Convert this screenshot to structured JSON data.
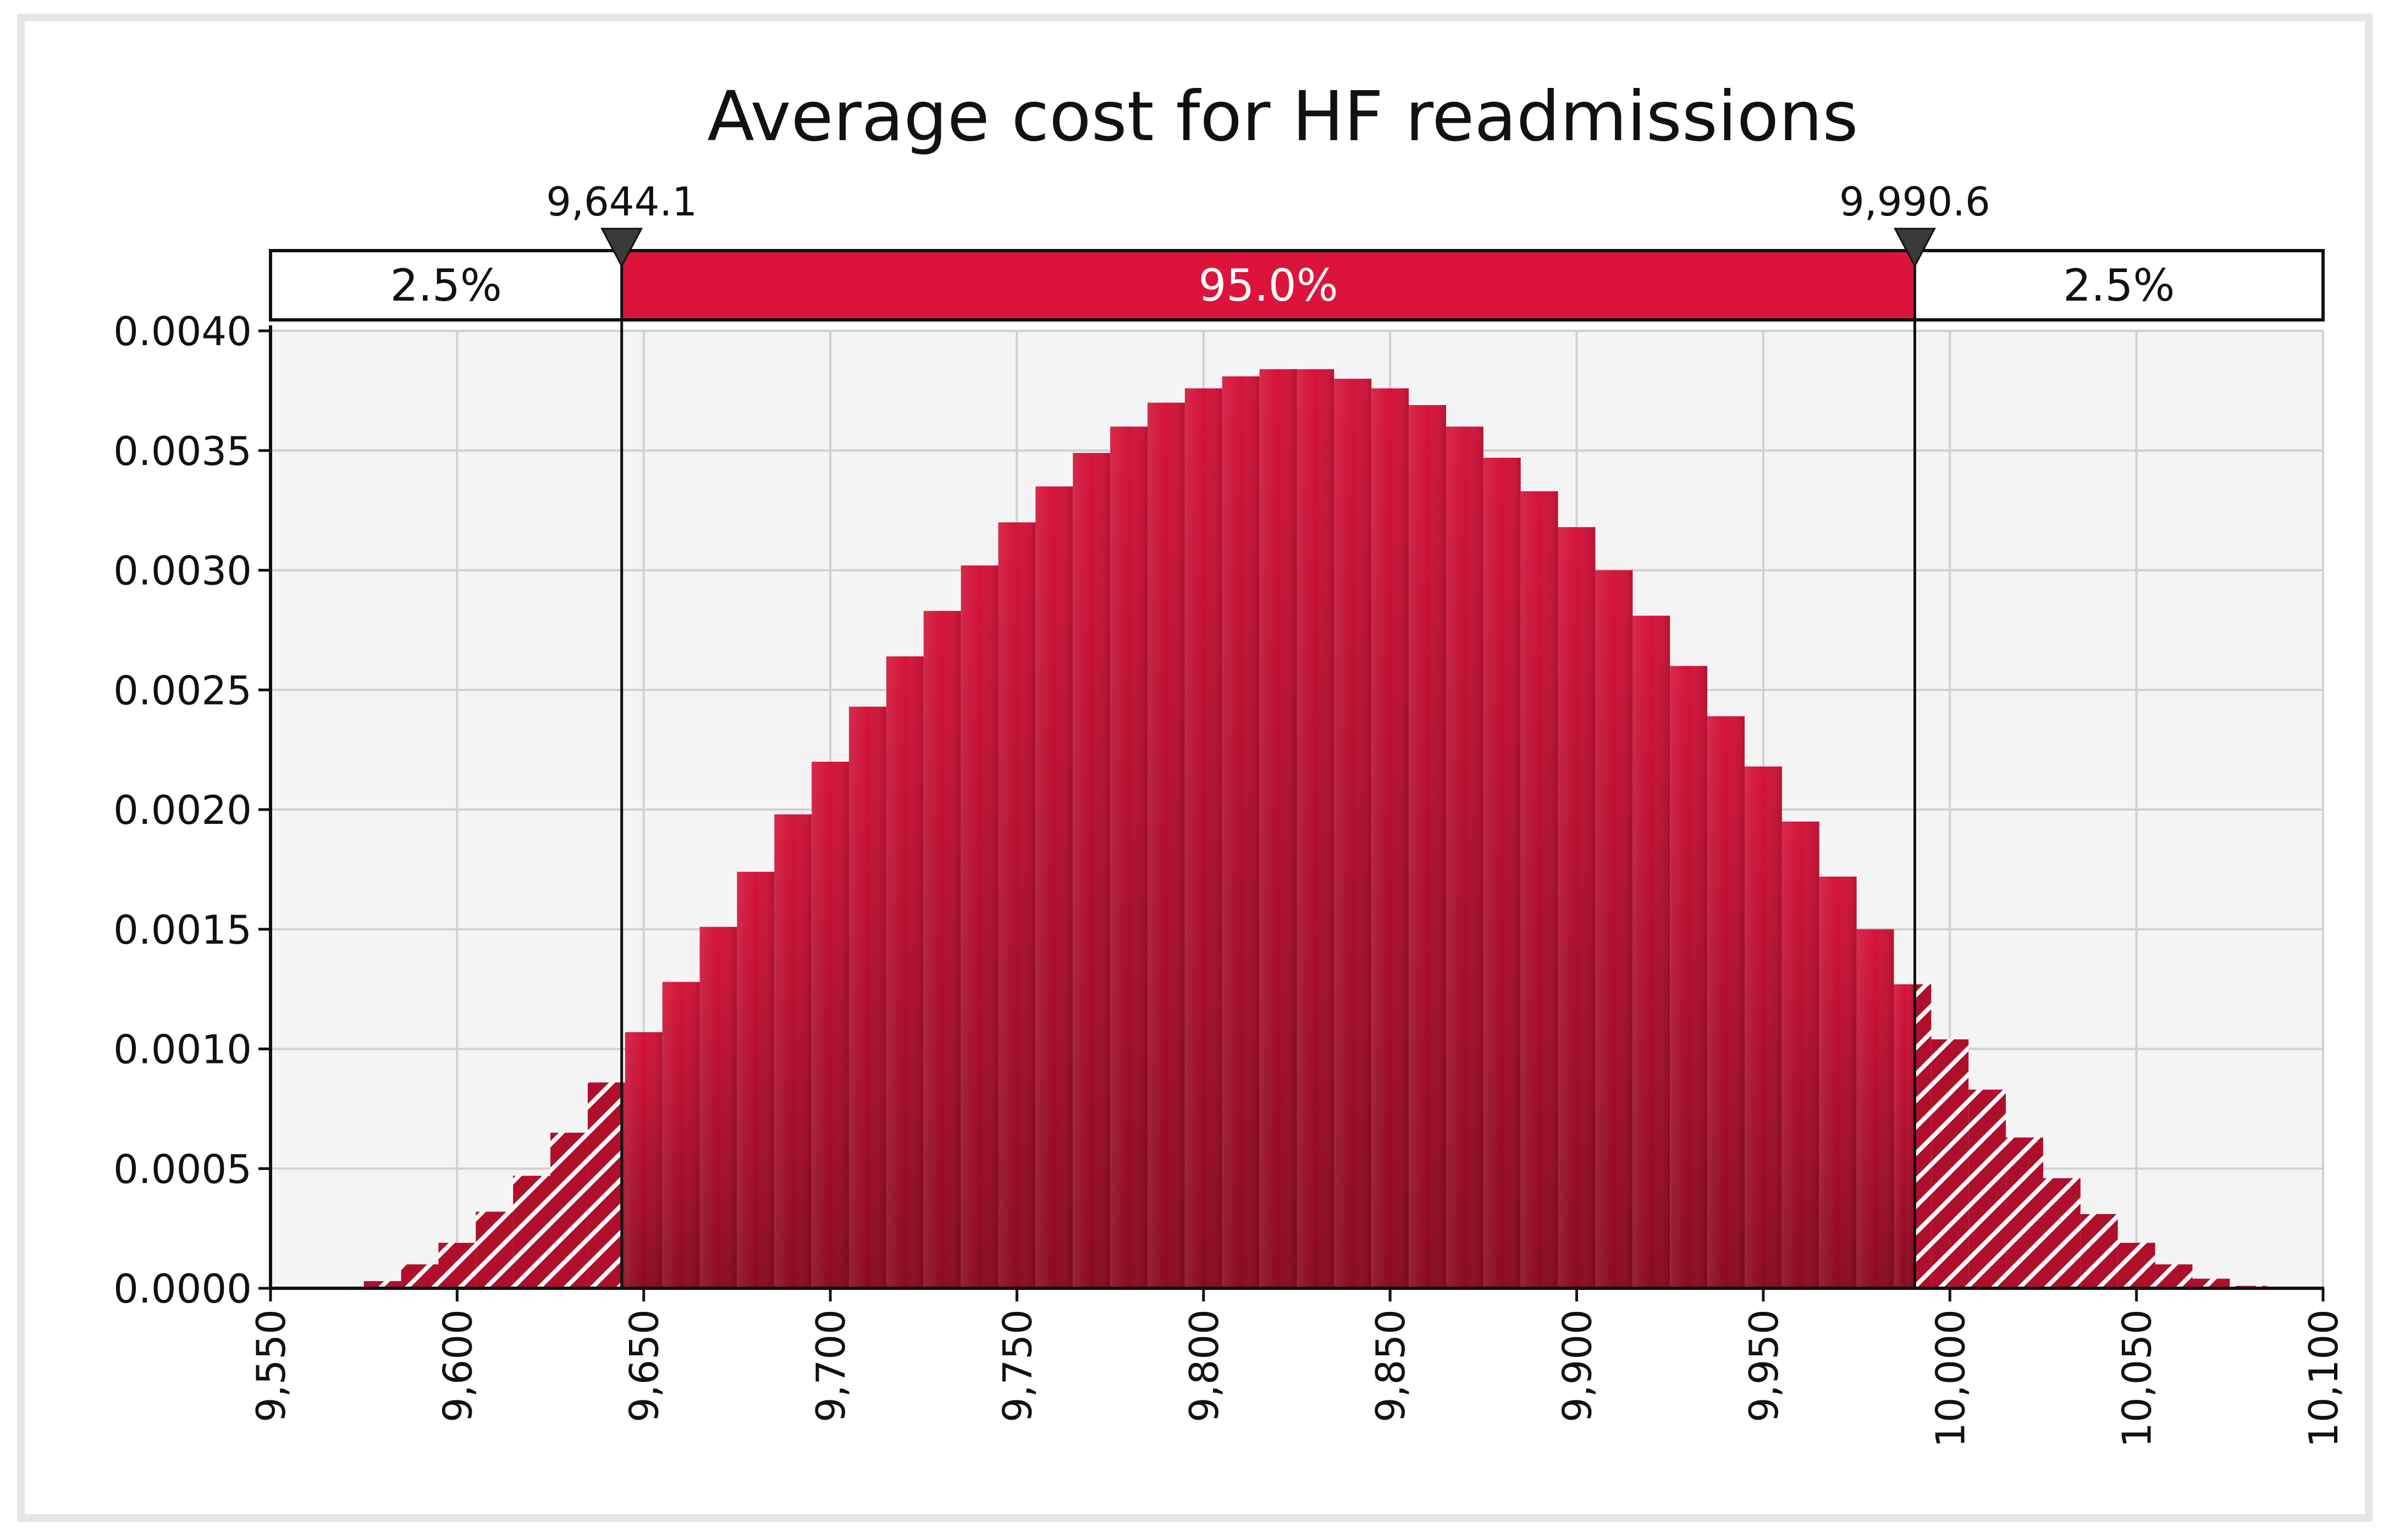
{
  "chart_data": {
    "type": "histogram",
    "title": "Average cost for HF readmissions",
    "xlabel": "",
    "ylabel": "",
    "xlim": [
      9550,
      10100
    ],
    "ylim": [
      0,
      0.004
    ],
    "x_ticks": [
      "9,550",
      "9,600",
      "9,650",
      "9,700",
      "9,750",
      "9,800",
      "9,850",
      "9,900",
      "9,950",
      "10,000",
      "10,050",
      "10,100"
    ],
    "x_tick_values": [
      9550,
      9600,
      9650,
      9700,
      9750,
      9800,
      9850,
      9900,
      9950,
      10000,
      10050,
      10100
    ],
    "y_ticks": [
      "0.0000",
      "0.0005",
      "0.0010",
      "0.0015",
      "0.0020",
      "0.0025",
      "0.0030",
      "0.0035",
      "0.0040"
    ],
    "y_tick_values": [
      0,
      0.0005,
      0.001,
      0.0015,
      0.002,
      0.0025,
      0.003,
      0.0035,
      0.004
    ],
    "grid": true,
    "bin_start": 9575,
    "bin_width": 10,
    "values": [
      3e-05,
      0.0001,
      0.00019,
      0.00032,
      0.00047,
      0.00065,
      0.00086,
      0.00107,
      0.00128,
      0.00151,
      0.00174,
      0.00198,
      0.0022,
      0.00243,
      0.00264,
      0.00283,
      0.00302,
      0.0032,
      0.00335,
      0.00349,
      0.0036,
      0.0037,
      0.00376,
      0.00381,
      0.00384,
      0.00384,
      0.0038,
      0.00376,
      0.00369,
      0.0036,
      0.00347,
      0.00333,
      0.00318,
      0.003,
      0.00281,
      0.0026,
      0.00239,
      0.00218,
      0.00195,
      0.00172,
      0.0015,
      0.00127,
      0.00104,
      0.00083,
      0.00063,
      0.00046,
      0.00031,
      0.00019,
      0.0001,
      4e-05,
      1e-05
    ],
    "interval": {
      "lower": 9644.1,
      "upper": 9990.6,
      "lower_label": "9,644.1",
      "upper_label": "9,990.6",
      "left_tail_label": "2.5%",
      "middle_label": "95.0%",
      "right_tail_label": "2.5%"
    },
    "colors": {
      "bar": "#c8102e",
      "bar_dark": "#8e0b22",
      "band_fill": "#dc143c",
      "plot_bg": "#f4f4f4",
      "grid": "#d0d0d0"
    }
  }
}
